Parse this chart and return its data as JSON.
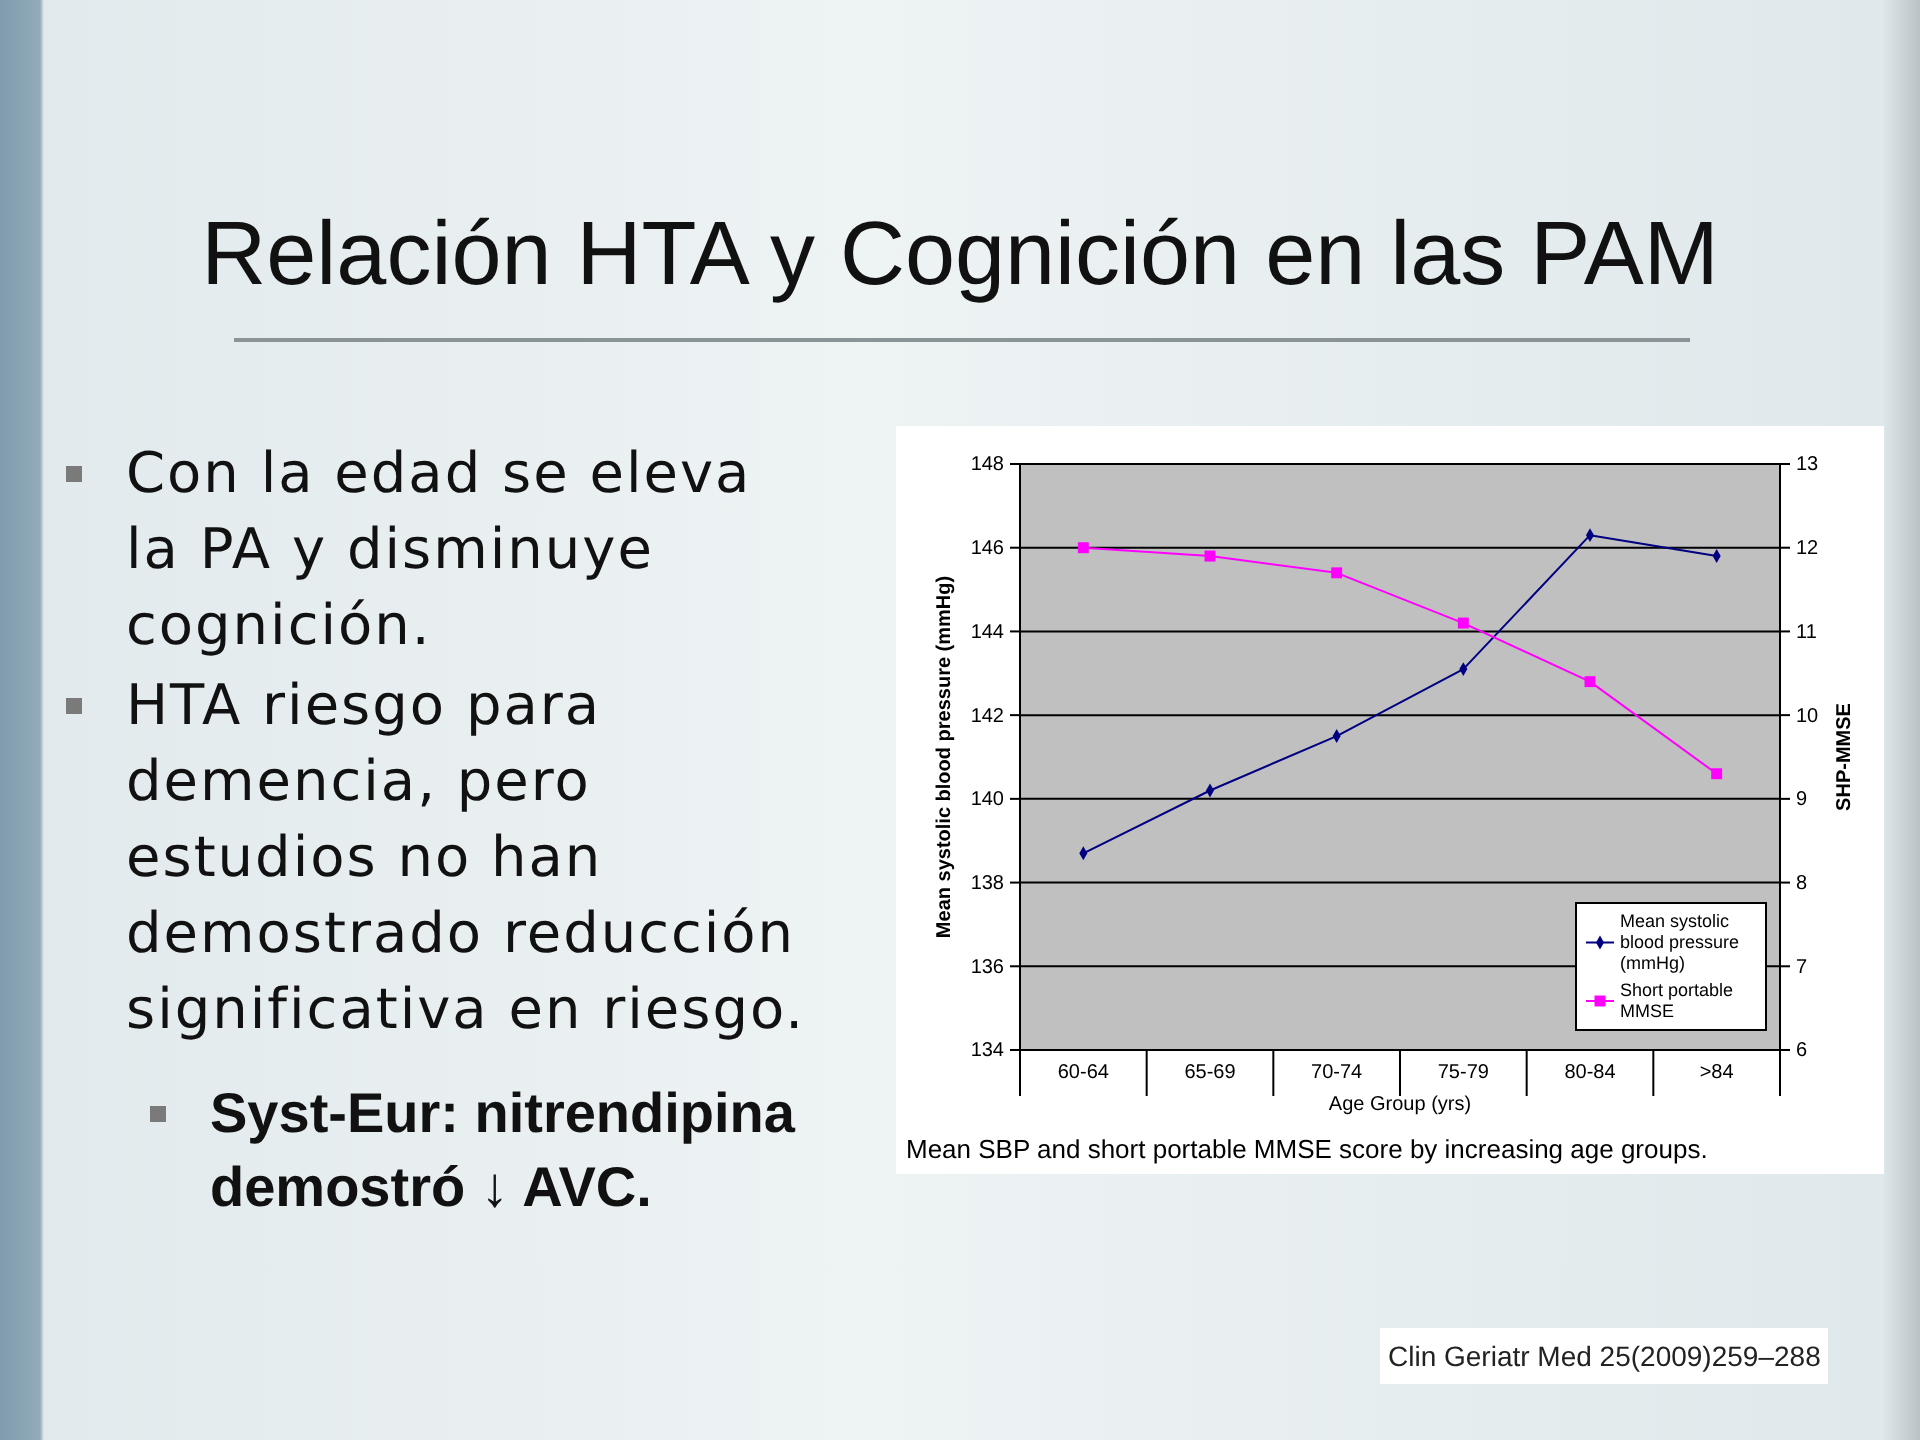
{
  "chart_data": {
    "type": "line",
    "title": "Relación HTA y Cognición en las PAM",
    "categories": [
      "60-64",
      "65-69",
      "70-74",
      "75-79",
      "80-84",
      ">84"
    ],
    "series": [
      {
        "name": "Mean systolic blood pressure (mmHg)",
        "color": "#000080",
        "marker": "diamond",
        "values": [
          138.7,
          140.2,
          141.5,
          143.1,
          146.3,
          145.8
        ]
      },
      {
        "name": "Short portable MMSE",
        "color": "#ff00ff",
        "marker": "square",
        "axis": "y2",
        "values": [
          12.0,
          11.9,
          11.7,
          11.1,
          10.4,
          9.3
        ]
      }
    ],
    "xlabel": "Age Group (yrs)",
    "ylabel": "Mean systolic blood pressure (mmHg)",
    "y2label": "SHP-MMSE",
    "ylim": [
      134,
      148
    ],
    "yticks": [
      134,
      136,
      138,
      140,
      142,
      144,
      146,
      148
    ],
    "y2lim": [
      6,
      13
    ],
    "y2ticks": [
      6,
      7,
      8,
      9,
      10,
      11,
      12,
      13
    ],
    "grid": "y",
    "legend": "bottom right",
    "annotations": [
      "Con la edad se eleva la PA y disminuye cognición.",
      "HTA riesgo para demencia, pero estudios no han demostrado reducción significativa en riesgo.",
      "Syst-Eur: nitrendipina demostró ↓ AVC.",
      "Mean SBP and short portable MMSE score by increasing age groups.",
      "Clin Geriatr Med 25(2009)259–288"
    ]
  }
}
